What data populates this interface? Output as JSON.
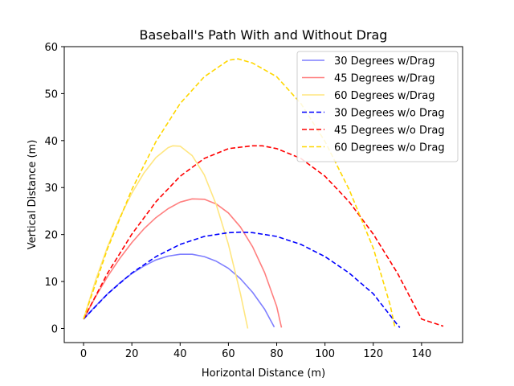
{
  "chart_data": {
    "type": "line",
    "title": "Baseball's Path With and Without Drag",
    "xlabel": "Horizontal Distance (m)",
    "ylabel": "Vertical Distance (m)",
    "xlim": [
      -8,
      157
    ],
    "ylim": [
      -3,
      60
    ],
    "xticks": [
      0,
      20,
      40,
      60,
      80,
      100,
      120,
      140
    ],
    "yticks": [
      0,
      10,
      20,
      30,
      40,
      50,
      60
    ],
    "grid": false,
    "legend_position": "top-right",
    "series": [
      {
        "name": "30 Degrees w/Drag",
        "color": "#7f7fff",
        "dash": "solid",
        "points": [
          [
            0,
            2
          ],
          [
            5,
            4.8
          ],
          [
            10,
            7.4
          ],
          [
            15,
            9.7
          ],
          [
            20,
            11.7
          ],
          [
            25,
            13.3
          ],
          [
            30,
            14.6
          ],
          [
            35,
            15.4
          ],
          [
            40,
            15.8
          ],
          [
            43,
            15.8
          ],
          [
            45,
            15.8
          ],
          [
            50,
            15.3
          ],
          [
            55,
            14.3
          ],
          [
            60,
            12.8
          ],
          [
            65,
            10.6
          ],
          [
            70,
            7.7
          ],
          [
            75,
            4.1
          ],
          [
            79,
            0.3
          ]
        ]
      },
      {
        "name": "45 Degrees w/Drag",
        "color": "#ff7f7f",
        "dash": "solid",
        "points": [
          [
            0,
            2
          ],
          [
            5,
            6.8
          ],
          [
            10,
            11.1
          ],
          [
            15,
            14.9
          ],
          [
            20,
            18.3
          ],
          [
            25,
            21.2
          ],
          [
            30,
            23.6
          ],
          [
            35,
            25.5
          ],
          [
            40,
            26.9
          ],
          [
            45,
            27.6
          ],
          [
            50,
            27.5
          ],
          [
            55,
            26.5
          ],
          [
            60,
            24.6
          ],
          [
            65,
            21.6
          ],
          [
            70,
            17.4
          ],
          [
            75,
            11.9
          ],
          [
            80,
            4.7
          ],
          [
            82,
            0.2
          ]
        ]
      },
      {
        "name": "60 Degrees w/Drag",
        "color": "#ffe680",
        "dash": "solid",
        "points": [
          [
            0,
            2
          ],
          [
            5,
            10.3
          ],
          [
            10,
            17.5
          ],
          [
            15,
            23.6
          ],
          [
            20,
            28.8
          ],
          [
            25,
            33.1
          ],
          [
            30,
            36.4
          ],
          [
            35,
            38.5
          ],
          [
            37,
            38.9
          ],
          [
            40,
            38.8
          ],
          [
            45,
            36.8
          ],
          [
            50,
            32.7
          ],
          [
            55,
            26.3
          ],
          [
            60,
            17.9
          ],
          [
            65,
            7.4
          ],
          [
            68,
            0
          ]
        ]
      },
      {
        "name": "30 Degrees w/o Drag",
        "color": "#0000ff",
        "dash": "dashed",
        "points": [
          [
            0,
            2
          ],
          [
            10,
            7.4
          ],
          [
            20,
            11.8
          ],
          [
            30,
            15.3
          ],
          [
            40,
            17.9
          ],
          [
            50,
            19.6
          ],
          [
            60,
            20.4
          ],
          [
            65,
            20.5
          ],
          [
            70,
            20.4
          ],
          [
            80,
            19.6
          ],
          [
            90,
            17.9
          ],
          [
            100,
            15.3
          ],
          [
            110,
            11.8
          ],
          [
            120,
            7.4
          ],
          [
            130,
            0.8
          ],
          [
            131,
            0.2
          ]
        ]
      },
      {
        "name": "45 Degrees w/o Drag",
        "color": "#ff0000",
        "dash": "dashed",
        "points": [
          [
            0,
            2
          ],
          [
            10,
            11.8
          ],
          [
            20,
            20.1
          ],
          [
            30,
            27.0
          ],
          [
            40,
            32.4
          ],
          [
            50,
            36.2
          ],
          [
            60,
            38.3
          ],
          [
            70,
            38.9
          ],
          [
            74,
            38.9
          ],
          [
            80,
            38.3
          ],
          [
            90,
            36.2
          ],
          [
            100,
            32.4
          ],
          [
            110,
            27.0
          ],
          [
            120,
            20.1
          ],
          [
            130,
            11.8
          ],
          [
            140,
            2.0
          ],
          [
            149,
            0.5
          ]
        ]
      },
      {
        "name": "60 Degrees w/o Drag",
        "color": "#ffd700",
        "dash": "dashed",
        "points": [
          [
            0,
            2
          ],
          [
            10,
            17.1
          ],
          [
            20,
            29.6
          ],
          [
            30,
            39.8
          ],
          [
            40,
            47.9
          ],
          [
            50,
            53.6
          ],
          [
            60,
            57.1
          ],
          [
            64,
            57.4
          ],
          [
            70,
            56.5
          ],
          [
            80,
            53.6
          ],
          [
            90,
            47.9
          ],
          [
            100,
            39.8
          ],
          [
            110,
            29.6
          ],
          [
            120,
            17.1
          ],
          [
            127,
            5.0
          ],
          [
            129,
            0.2
          ]
        ]
      }
    ]
  }
}
